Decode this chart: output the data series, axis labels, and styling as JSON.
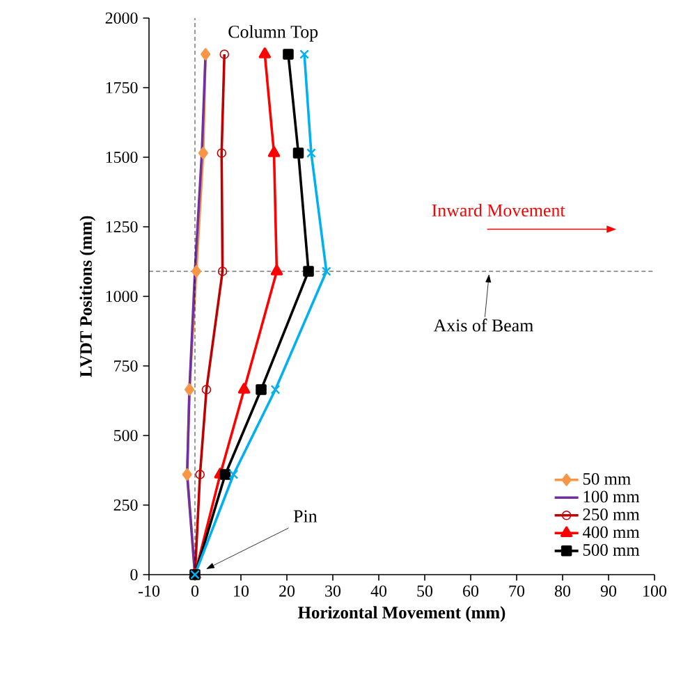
{
  "chart_data": {
    "type": "line",
    "xlabel": "Horizontal Movement (mm)",
    "ylabel": "LVDT Positions (mm)",
    "x": [
      0,
      360,
      665,
      1090,
      1515,
      1870
    ],
    "series": [
      {
        "name": "50 mm",
        "color": "#f79646",
        "marker": "diamond",
        "values": [
          0,
          -1.7,
          -1.2,
          0.3,
          1.8,
          2.3
        ]
      },
      {
        "name": "100 mm",
        "color": "#7030a0",
        "marker": "none",
        "values": [
          0,
          -1.7,
          -1.2,
          0,
          1.5,
          2.3
        ]
      },
      {
        "name": "250 mm",
        "color": "#c00000",
        "marker": "circle",
        "values": [
          0,
          1.1,
          2.5,
          6,
          5.8,
          6.4
        ]
      },
      {
        "name": "400 mm",
        "color": "#ff0000",
        "marker": "triangle",
        "values": [
          0,
          5.5,
          10.7,
          17.8,
          17.2,
          15.2
        ]
      },
      {
        "name": "500 mm",
        "color": "#000000",
        "marker": "square",
        "values": [
          0,
          6.6,
          14.4,
          24.7,
          22.5,
          20.3
        ]
      },
      {
        "color": "#00b0f0",
        "marker": "cross",
        "values": [
          0,
          8.4,
          17.5,
          28.6,
          25.3,
          23.8
        ]
      }
    ],
    "orientation": "horizontal",
    "xlim": [
      -10,
      100
    ],
    "xticks": [
      -10,
      0,
      10,
      20,
      30,
      40,
      50,
      60,
      70,
      80,
      90,
      100
    ],
    "ylim": [
      0,
      2000
    ],
    "yticks": [
      0,
      250,
      500,
      750,
      1000,
      1250,
      1500,
      1750,
      2000
    ],
    "ref_lines": [
      {
        "axis": "y",
        "value": 1090,
        "line_style": "dashed"
      },
      {
        "axis": "x",
        "value": 0,
        "line_style": "dashed"
      }
    ],
    "annotations": [
      "Column Top",
      "Inward Movement",
      {
        "text": "Axis of Beam",
        "x": 64,
        "y": 1090
      },
      "Pin"
    ],
    "legend": "bottom right",
    "grid": false
  }
}
